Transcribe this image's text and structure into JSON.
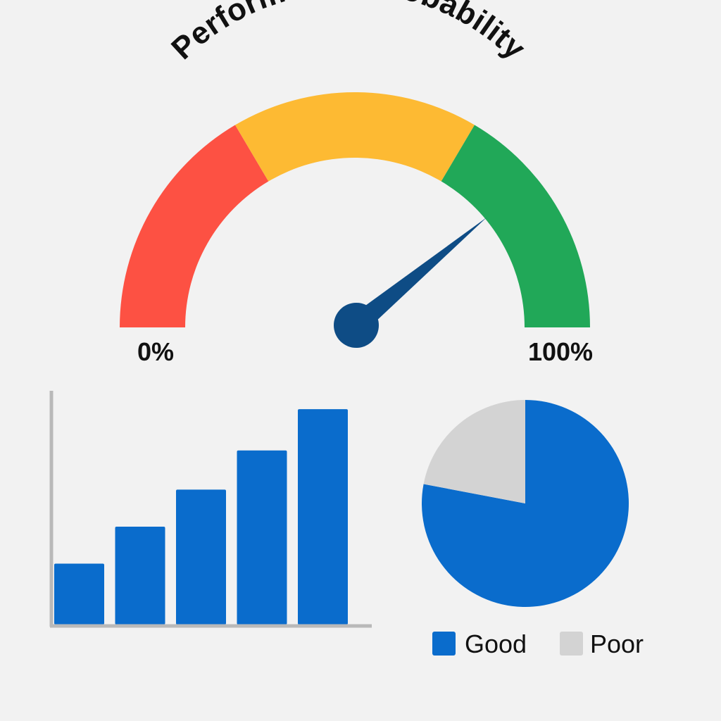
{
  "chart_data": [
    {
      "type": "gauge",
      "title": "Performance Probability",
      "min_label": "0%",
      "max_label": "100%",
      "range": [
        0,
        100
      ],
      "value": 78,
      "bands": [
        {
          "from": 0,
          "to": 33,
          "color": "#fd5143"
        },
        {
          "from": 33,
          "to": 67,
          "color": "#fdba33"
        },
        {
          "from": 67,
          "to": 100,
          "color": "#21a858"
        }
      ],
      "needle_color": "#0e4c85"
    },
    {
      "type": "bar",
      "title": "",
      "xlabel": "",
      "ylabel": "",
      "categories": [
        "",
        "",
        "",
        "",
        ""
      ],
      "values": [
        28,
        45,
        62,
        80,
        99
      ],
      "ylim": [
        0,
        100
      ],
      "bar_color": "#0a6ccc",
      "axis_color": "#b9b9b9",
      "grid": false
    },
    {
      "type": "pie",
      "title": "",
      "slices": [
        {
          "label": "Good",
          "value": 78,
          "color": "#0a6ccc"
        },
        {
          "label": "Poor",
          "value": 22,
          "color": "#d3d3d3"
        }
      ],
      "legend_position": "bottom"
    }
  ]
}
